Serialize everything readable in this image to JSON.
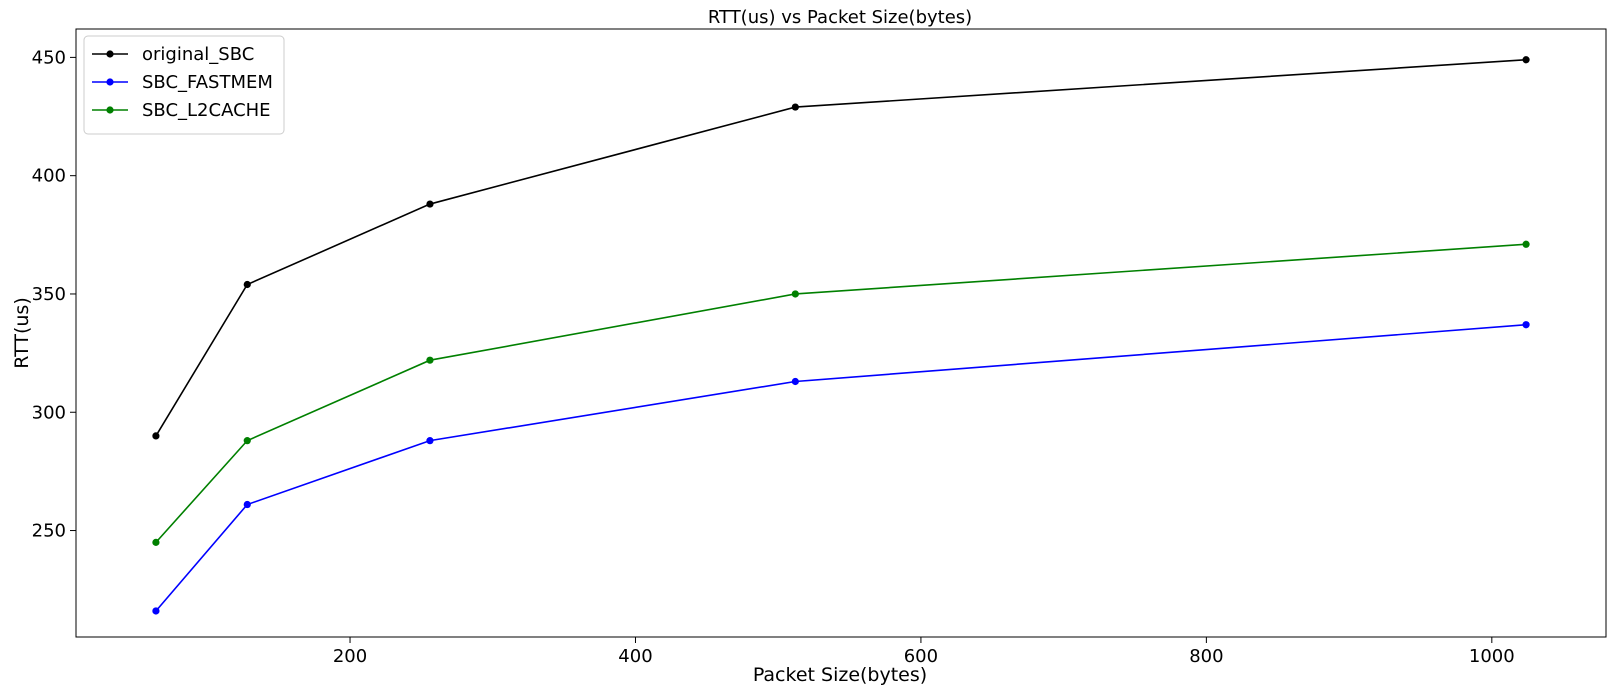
{
  "chart_data": {
    "type": "line",
    "title": "RTT(us) vs Packet Size(bytes)",
    "xlabel": "Packet Size(bytes)",
    "ylabel": "RTT(us)",
    "xlim": [
      8,
      1080
    ],
    "ylim": [
      205,
      462
    ],
    "xticks": [
      200,
      400,
      600,
      800,
      1000
    ],
    "yticks": [
      250,
      300,
      350,
      400,
      450
    ],
    "x": [
      64,
      128,
      256,
      512,
      1024
    ],
    "series": [
      {
        "name": "original_SBC",
        "color": "#000000",
        "values": [
          290,
          354,
          388,
          429,
          449
        ]
      },
      {
        "name": "SBC_FASTMEM",
        "color": "#0000ff",
        "values": [
          216,
          261,
          288,
          313,
          337
        ]
      },
      {
        "name": "SBC_L2CACHE",
        "color": "#008000",
        "values": [
          245,
          288,
          322,
          350,
          371
        ]
      }
    ],
    "legend_position": "upper-left",
    "grid": false
  }
}
